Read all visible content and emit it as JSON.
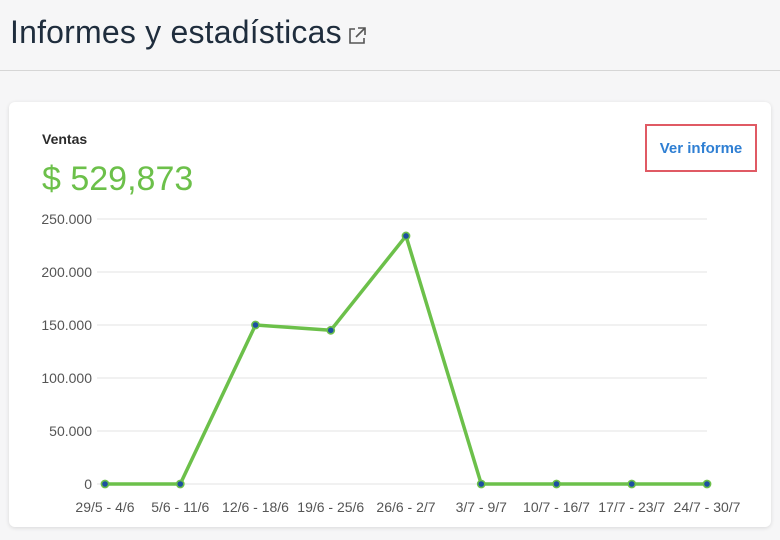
{
  "header": {
    "title": "Informes y estadísticas",
    "external_link_icon": "external-link-icon"
  },
  "card": {
    "metric_label": "Ventas",
    "metric_value": "$ 529,873",
    "report_link": "Ver informe"
  },
  "colors": {
    "accent_green": "#6cc04a",
    "point_blue": "#1d4fa0",
    "link_blue": "#2f7fd3",
    "highlight_red": "#e05a64"
  },
  "chart_data": {
    "type": "line",
    "categories": [
      "29/5 - 4/6",
      "5/6 - 11/6",
      "12/6 - 18/6",
      "19/6 - 25/6",
      "26/6 - 2/7",
      "3/7 - 9/7",
      "10/7 - 16/7",
      "17/7 - 23/7",
      "24/7 - 30/7"
    ],
    "series": [
      {
        "values": [
          0,
          0,
          150000,
          145000,
          234000,
          0,
          0,
          0,
          0
        ]
      }
    ],
    "ylim": [
      0,
      250000
    ],
    "yticks": [
      0,
      50000,
      100000,
      150000,
      200000,
      250000
    ],
    "ytick_labels": [
      "0",
      "50.000",
      "100.000",
      "150.000",
      "200.000",
      "250.000"
    ],
    "grid": true,
    "legend": "none"
  }
}
